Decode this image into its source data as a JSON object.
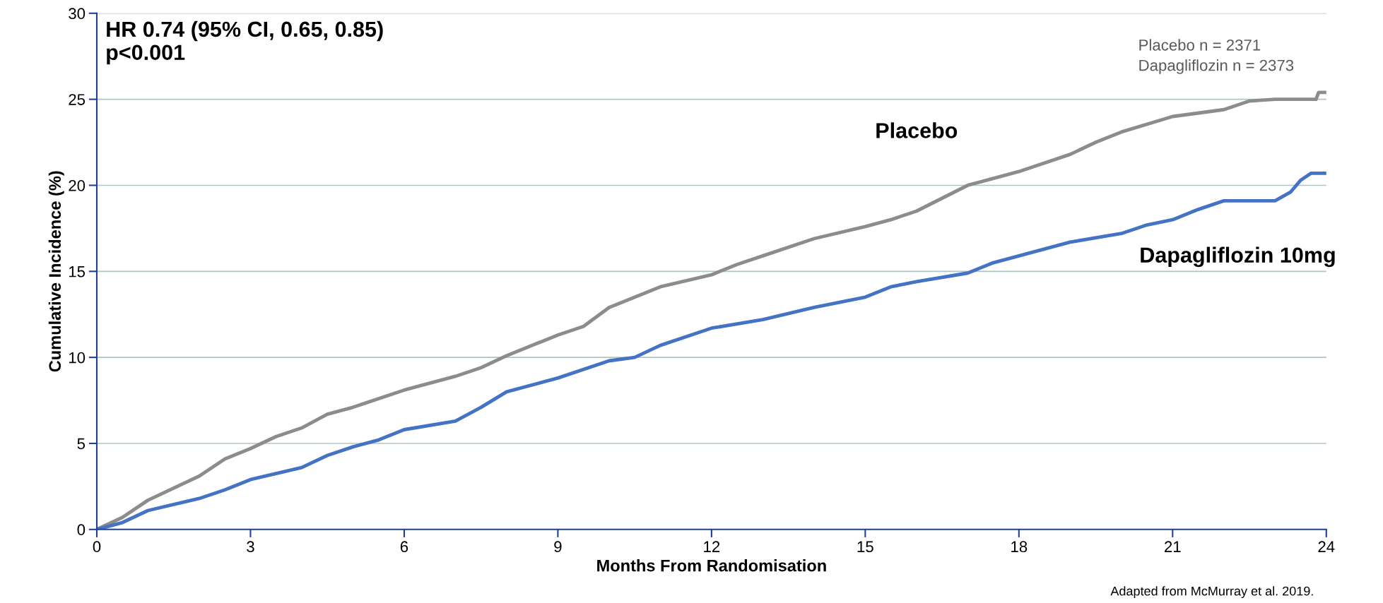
{
  "chart_data": {
    "type": "line",
    "xlabel": "Months From Randomisation",
    "ylabel": "Cumulative Incidence (%)",
    "xlim": [
      0,
      24
    ],
    "xticks": [
      0,
      3,
      6,
      9,
      12,
      15,
      18,
      21,
      24
    ],
    "ylim": [
      0,
      30
    ],
    "yticks": [
      0,
      5,
      10,
      15,
      20,
      25,
      30
    ],
    "grid": "y",
    "legend": false,
    "series": [
      {
        "name": "Placebo",
        "color": "#8c8c8c",
        "x": [
          0,
          0.5,
          1,
          2,
          2.5,
          3,
          3.5,
          4,
          4.5,
          5,
          6,
          7,
          7.5,
          8,
          9,
          9.5,
          10,
          11,
          12,
          12.5,
          13,
          14,
          15,
          15.5,
          16,
          17,
          18,
          19,
          19.5,
          20,
          21,
          22,
          22.5,
          23,
          23.8,
          23.85,
          24
        ],
        "values": [
          0,
          0.7,
          1.7,
          3.1,
          4.1,
          4.7,
          5.4,
          5.9,
          6.7,
          7.1,
          8.1,
          8.9,
          9.4,
          10.1,
          11.3,
          11.8,
          12.9,
          14.1,
          14.8,
          15.4,
          15.9,
          16.9,
          17.6,
          18.0,
          18.5,
          20.0,
          20.8,
          21.8,
          22.5,
          23.1,
          24.0,
          24.4,
          24.9,
          25.0,
          25.0,
          25.4,
          25.4
        ]
      },
      {
        "name": "Dapagliflozin 10mg",
        "color": "#4472c4",
        "x": [
          0,
          0.5,
          1,
          2,
          2.5,
          3,
          4,
          4.5,
          5,
          5.5,
          6,
          7,
          7.5,
          8,
          9,
          10,
          10.5,
          11,
          12,
          13,
          14,
          15,
          15.5,
          16,
          17,
          17.5,
          18,
          19,
          20,
          20.5,
          21,
          21.5,
          22,
          23,
          23.3,
          23.5,
          23.7,
          24
        ],
        "values": [
          0,
          0.4,
          1.1,
          1.8,
          2.3,
          2.9,
          3.6,
          4.3,
          4.8,
          5.2,
          5.8,
          6.3,
          7.1,
          8.0,
          8.8,
          9.8,
          10.0,
          10.7,
          11.7,
          12.2,
          12.9,
          13.5,
          14.1,
          14.4,
          14.9,
          15.5,
          15.9,
          16.7,
          17.2,
          17.7,
          18.0,
          18.6,
          19.1,
          19.1,
          19.6,
          20.3,
          20.7,
          20.7
        ]
      }
    ],
    "annotations": [
      "HR 0.74 (95% CI, 0.65, 0.85)\np<0.001",
      "Placebo n = 2371\nDapagliflozin n = 2373",
      "Adapted from McMurray et al. 2019."
    ]
  }
}
